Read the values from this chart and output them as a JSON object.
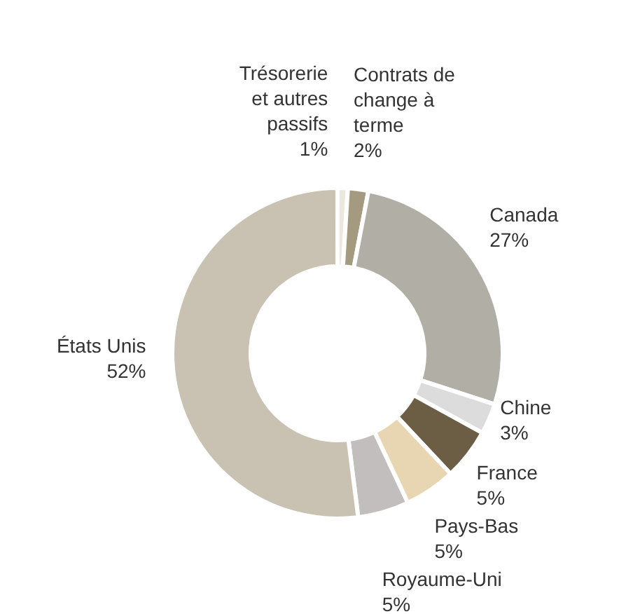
{
  "chart_data": {
    "type": "donut",
    "categories": [
      "Trésorerie et autres passifs",
      "Contrats de change à terme",
      "Canada",
      "Chine",
      "France",
      "Pays-Bas",
      "Royaume-Uni",
      "États Unis"
    ],
    "values": [
      1,
      2,
      27,
      3,
      5,
      5,
      5,
      52
    ],
    "value_labels": [
      "1%",
      "2%",
      "27%",
      "3%",
      "5%",
      "5%",
      "5%",
      "52%"
    ],
    "colors": [
      "#ece8e0",
      "#a39a80",
      "#b1afa5",
      "#dcdcdc",
      "#6b5e45",
      "#e8d6b2",
      "#c3bebe",
      "#c9c1b2"
    ]
  }
}
